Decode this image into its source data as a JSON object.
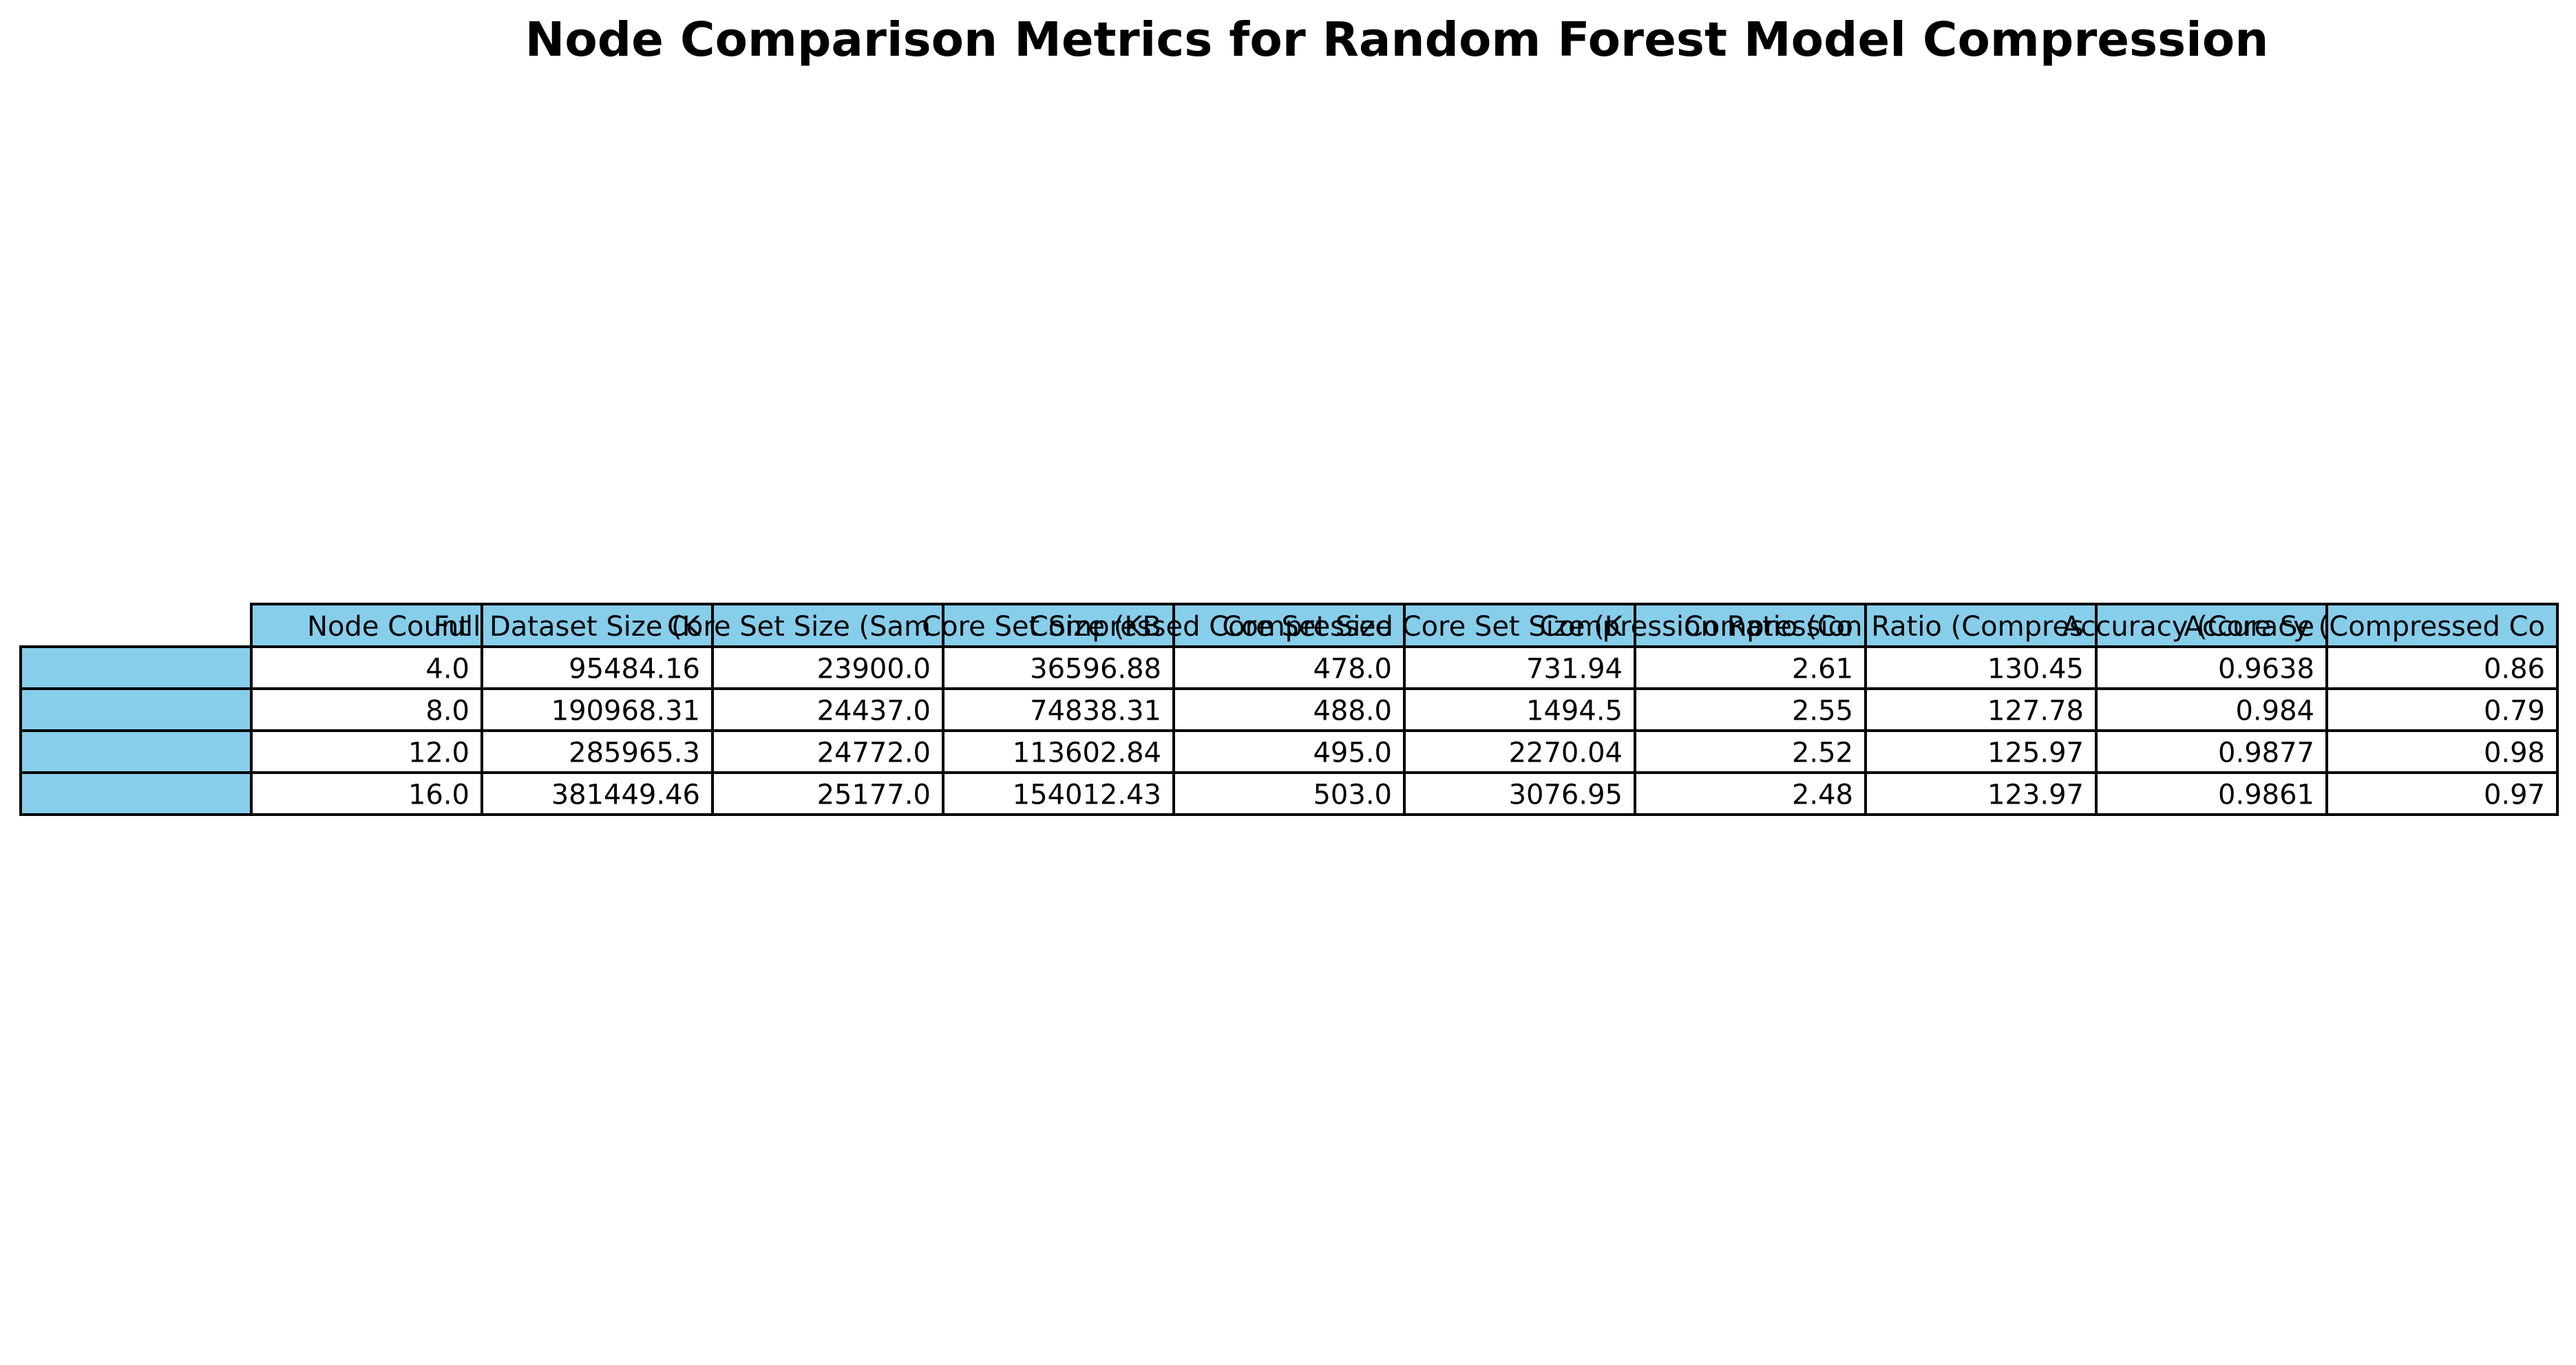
{
  "chart_data": {
    "type": "table",
    "title": "Node Comparison Metrics for Random Forest Model Compression",
    "header_color": "#87CEEB",
    "row_label_color": "#87CEEB",
    "body_color": "#FFFFFF",
    "border_color": "#000000",
    "columns": [
      "Node Count",
      "Full Dataset Size (KB)",
      "Core Set Size (Samples)",
      "Core Set Size (KB)",
      "Compressed Core Set Size",
      "Compressed Core Set Size (KB)",
      "Compression Ratio (Core Set)",
      "Compression Ratio (Compressed Core Set)",
      "Accuracy (Core Set)",
      "Accuracy (Compressed Core Set)"
    ],
    "visible_headers": [
      "Node Count",
      "Full Dataset Size (K",
      "Core Set Size (Sam",
      "Core Set Size (KB",
      "Compressed Core Set Size",
      "Compressed Core Set Size (K",
      "Compression Ratio (Co",
      "Compression Ratio (Compres",
      "Accuracy (Core Se",
      "Accuracy (Compressed Co"
    ],
    "row_labels": [
      "",
      "",
      "",
      ""
    ],
    "rows": [
      [
        "4.0",
        "95484.16",
        "23900.0",
        "36596.88",
        "478.0",
        "731.94",
        "2.61",
        "130.45",
        "0.9638",
        "0.86"
      ],
      [
        "8.0",
        "190968.31",
        "24437.0",
        "74838.31",
        "488.0",
        "1494.5",
        "2.55",
        "127.78",
        "0.984",
        "0.79"
      ],
      [
        "12.0",
        "285965.3",
        "24772.0",
        "113602.84",
        "495.0",
        "2270.04",
        "2.52",
        "125.97",
        "0.9877",
        "0.98"
      ],
      [
        "16.0",
        "381449.46",
        "25177.0",
        "154012.43",
        "503.0",
        "3076.95",
        "2.48",
        "123.97",
        "0.9861",
        "0.97"
      ]
    ]
  }
}
